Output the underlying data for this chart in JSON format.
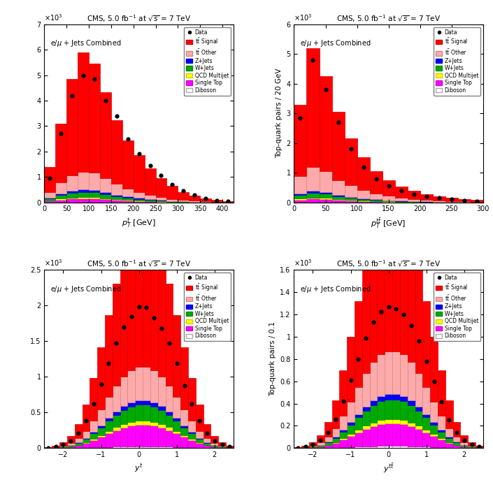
{
  "title": "CMS, 5.0 fb$^{-1}$ at $\\sqrt{s}$ = 7 TeV",
  "legend_label": "e/\\u03bc + Jets Combined",
  "stack_labels": [
    "t\\u0305t\\u0305 Signal",
    "t\\u0305t\\u0305 Other",
    "Z+Jets",
    "W+Jets",
    "QCD Multijet",
    "Single Top",
    "Diboson"
  ],
  "stack_colors": [
    "#ff0000",
    "#ffaaaa",
    "#0000ff",
    "#00aa00",
    "#ffff00",
    "#ff00ff",
    "#ffffff"
  ],
  "stack_edgecolors": [
    "#cc0000",
    "#cc8888",
    "#0000cc",
    "#008800",
    "#cccc00",
    "#cc00cc",
    "#aaaaaa"
  ],
  "plot1": {
    "title": "CMS, 5.0 fb$^{-1}$ at $\\sqrt{s}$ = 7 TeV",
    "xlabel": "$p_{T}^{t}$ [GeV]",
    "ylabel": "",
    "xlim": [
      0,
      425
    ],
    "ylim": [
      0,
      7000
    ],
    "ytick_scale": 1000,
    "ytick_labels": [
      "0",
      "1",
      "2",
      "3",
      "4",
      "5",
      "6",
      "7"
    ],
    "bin_edges": [
      0,
      25,
      50,
      75,
      100,
      125,
      150,
      175,
      200,
      225,
      250,
      275,
      300,
      325,
      350,
      375,
      400,
      425
    ],
    "stack_data": [
      [
        1000,
        2300,
        3800,
        4700,
        4300,
        3400,
        2500,
        1900,
        1450,
        1050,
        750,
        500,
        320,
        210,
        130,
        70,
        40
      ],
      [
        200,
        450,
        600,
        700,
        680,
        550,
        420,
        320,
        240,
        170,
        120,
        80,
        55,
        35,
        22,
        12,
        7
      ],
      [
        30,
        60,
        80,
        90,
        85,
        70,
        55,
        40,
        30,
        22,
        15,
        10,
        7,
        4,
        3,
        2,
        1
      ],
      [
        80,
        140,
        180,
        200,
        190,
        155,
        120,
        90,
        68,
        50,
        35,
        23,
        15,
        10,
        6,
        4,
        2
      ],
      [
        20,
        35,
        45,
        50,
        48,
        39,
        30,
        23,
        17,
        12,
        9,
        6,
        4,
        3,
        2,
        1,
        1
      ],
      [
        50,
        90,
        120,
        135,
        130,
        105,
        82,
        62,
        47,
        34,
        24,
        16,
        11,
        7,
        4,
        3,
        2
      ],
      [
        10,
        18,
        24,
        27,
        26,
        21,
        16,
        12,
        9,
        7,
        5,
        3,
        2,
        1,
        1,
        1,
        0
      ]
    ],
    "data_points": [
      950,
      2700,
      4200,
      5000,
      4850,
      4000,
      3400,
      2500,
      1900,
      1450,
      1050,
      700,
      450,
      300,
      150,
      85,
      50
    ],
    "data_x": [
      12.5,
      37.5,
      62.5,
      87.5,
      112.5,
      137.5,
      162.5,
      187.5,
      212.5,
      237.5,
      262.5,
      287.5,
      312.5,
      337.5,
      362.5,
      387.5,
      412.5
    ]
  },
  "plot2": {
    "title": "CMS, 5.0 fb$^{-1}$ at $\\sqrt{s}$ = 7 TeV",
    "xlabel": "$p_{T}^{t\\bar{t}}$ [GeV]",
    "ylabel": "Top-quark pairs / 20 GeV",
    "xlim": [
      0,
      300
    ],
    "ylim": [
      0,
      6000
    ],
    "ytick_scale": 1000,
    "ytick_labels": [
      "0",
      "1",
      "2",
      "3",
      "4",
      "5",
      "6"
    ],
    "bin_edges": [
      0,
      20,
      40,
      60,
      80,
      100,
      120,
      140,
      160,
      180,
      200,
      220,
      240,
      260,
      280,
      300
    ],
    "stack_data": [
      [
        2400,
        4000,
        3200,
        2300,
        1600,
        1100,
        750,
        520,
        370,
        270,
        200,
        150,
        110,
        80,
        55
      ],
      [
        600,
        800,
        700,
        500,
        380,
        280,
        200,
        145,
        105,
        77,
        57,
        43,
        32,
        24,
        17
      ],
      [
        50,
        70,
        62,
        44,
        33,
        24,
        17,
        12,
        9,
        7,
        5,
        4,
        3,
        2,
        1
      ],
      [
        120,
        160,
        140,
        100,
        76,
        55,
        40,
        29,
        21,
        15,
        11,
        8,
        6,
        5,
        3
      ],
      [
        30,
        40,
        35,
        25,
        19,
        14,
        10,
        7,
        5,
        4,
        3,
        2,
        2,
        1,
        1
      ],
      [
        80,
        107,
        94,
        67,
        51,
        37,
        27,
        19,
        14,
        10,
        8,
        6,
        4,
        3,
        2
      ],
      [
        16,
        21,
        19,
        13,
        10,
        7,
        5,
        4,
        3,
        2,
        1,
        1,
        1,
        1,
        0
      ]
    ],
    "data_points": [
      2850,
      4800,
      3800,
      2700,
      1800,
      1200,
      800,
      550,
      380,
      270,
      200,
      150,
      100,
      70,
      50
    ],
    "data_x": [
      10,
      30,
      50,
      70,
      90,
      110,
      130,
      150,
      170,
      190,
      210,
      230,
      250,
      270,
      290
    ]
  },
  "plot3": {
    "title": "CMS, 5.0 fb$^{-1}$ at $\\sqrt{s}$ = 7 TeV",
    "xlabel": "$y^{t}$",
    "ylabel": "",
    "xlim": [
      -2.5,
      2.5
    ],
    "ylim": [
      0,
      2500
    ],
    "ytick_scale": 1000,
    "ytick_labels": [
      "0",
      "0.5",
      "1",
      "1.5",
      "2",
      "2.5"
    ],
    "bin_edges": [
      -2.5,
      -2.3,
      -2.1,
      -1.9,
      -1.7,
      -1.5,
      -1.3,
      -1.1,
      -0.9,
      -0.7,
      -0.5,
      -0.3,
      -0.1,
      0.1,
      0.3,
      0.5,
      0.7,
      0.9,
      1.1,
      1.3,
      1.5,
      1.7,
      1.9,
      2.1,
      2.3,
      2.5
    ],
    "stack_data": [
      [
        5,
        18,
        45,
        100,
        200,
        370,
        600,
        870,
        1150,
        1430,
        1650,
        1800,
        1870,
        1870,
        1800,
        1650,
        1430,
        1150,
        870,
        600,
        370,
        200,
        100,
        45,
        18
      ],
      [
        2,
        6,
        14,
        30,
        57,
        100,
        160,
        225,
        295,
        362,
        415,
        453,
        470,
        470,
        453,
        415,
        362,
        295,
        225,
        160,
        100,
        57,
        30,
        14,
        6
      ],
      [
        0,
        1,
        2,
        4,
        8,
        13,
        21,
        29,
        38,
        46,
        52,
        57,
        59,
        59,
        57,
        52,
        46,
        38,
        29,
        21,
        13,
        8,
        4,
        2,
        1
      ],
      [
        1,
        3,
        7,
        14,
        27,
        48,
        77,
        109,
        143,
        175,
        200,
        218,
        226,
        226,
        218,
        200,
        175,
        143,
        109,
        77,
        48,
        27,
        14,
        7,
        3
      ],
      [
        0,
        1,
        2,
        4,
        7,
        12,
        19,
        27,
        35,
        43,
        49,
        54,
        56,
        56,
        54,
        49,
        43,
        35,
        27,
        19,
        12,
        7,
        4,
        2,
        1
      ],
      [
        1,
        4,
        9,
        19,
        36,
        63,
        102,
        144,
        189,
        232,
        266,
        290,
        301,
        301,
        290,
        266,
        232,
        189,
        144,
        102,
        63,
        36,
        19,
        9,
        4
      ],
      [
        0,
        0,
        1,
        2,
        3,
        5,
        8,
        11,
        15,
        18,
        21,
        23,
        24,
        24,
        23,
        21,
        18,
        15,
        11,
        8,
        5,
        3,
        2,
        1,
        0
      ]
    ],
    "data_x": [
      -2.4,
      -2.2,
      -2.0,
      -1.8,
      -1.6,
      -1.4,
      -1.2,
      -1.0,
      -0.8,
      -0.6,
      -0.4,
      -0.2,
      0.0,
      0.2,
      0.4,
      0.6,
      0.8,
      1.0,
      1.2,
      1.4,
      1.6,
      1.8,
      2.0,
      2.2,
      2.4
    ],
    "data_points": [
      5,
      20,
      48,
      105,
      210,
      385,
      625,
      900,
      1190,
      1470,
      1700,
      1850,
      1980,
      1970,
      1830,
      1680,
      1470,
      1190,
      880,
      620,
      385,
      205,
      105,
      48,
      20
    ]
  },
  "plot4": {
    "title": "CMS, 5.0 fb$^{-1}$ at $\\sqrt{s}$ = 7 TeV",
    "xlabel": "$y^{t\\bar{t}}$",
    "ylabel": "Top-quark pairs / 0.1",
    "xlim": [
      -2.5,
      2.5
    ],
    "ylim": [
      0,
      1600
    ],
    "ytick_scale": 1000,
    "ytick_labels": [
      "0",
      "0.2",
      "0.4",
      "0.6",
      "0.8",
      "1",
      "1.2",
      "1.4",
      "1.6"
    ],
    "bin_edges": [
      -2.5,
      -2.3,
      -2.1,
      -1.9,
      -1.7,
      -1.5,
      -1.3,
      -1.1,
      -0.9,
      -0.7,
      -0.5,
      -0.3,
      -0.1,
      0.1,
      0.3,
      0.5,
      0.7,
      0.9,
      1.1,
      1.3,
      1.5,
      1.7,
      1.9,
      2.1,
      2.3,
      2.5
    ],
    "stack_data": [
      [
        3,
        12,
        30,
        67,
        135,
        248,
        405,
        585,
        770,
        950,
        1090,
        1185,
        1225,
        1225,
        1185,
        1090,
        950,
        770,
        585,
        405,
        248,
        135,
        67,
        30,
        12
      ],
      [
        1,
        4,
        10,
        22,
        44,
        80,
        130,
        186,
        244,
        300,
        343,
        373,
        386,
        386,
        373,
        343,
        300,
        244,
        186,
        130,
        80,
        44,
        22,
        10,
        4
      ],
      [
        0,
        1,
        1,
        3,
        6,
        10,
        17,
        24,
        31,
        38,
        43,
        47,
        48,
        48,
        47,
        43,
        38,
        31,
        24,
        17,
        10,
        6,
        3,
        1,
        1
      ],
      [
        1,
        2,
        5,
        10,
        20,
        36,
        59,
        84,
        111,
        136,
        156,
        170,
        176,
        176,
        170,
        156,
        136,
        111,
        84,
        59,
        36,
        20,
        10,
        5,
        2
      ],
      [
        0,
        0,
        1,
        2,
        4,
        8,
        13,
        18,
        24,
        29,
        33,
        36,
        38,
        38,
        36,
        33,
        29,
        24,
        18,
        13,
        8,
        4,
        2,
        1,
        0
      ],
      [
        0,
        2,
        5,
        11,
        23,
        42,
        68,
        97,
        128,
        157,
        180,
        196,
        203,
        203,
        196,
        180,
        157,
        128,
        97,
        68,
        42,
        23,
        11,
        5,
        2
      ],
      [
        0,
        0,
        1,
        1,
        2,
        4,
        6,
        9,
        12,
        14,
        17,
        18,
        19,
        19,
        18,
        17,
        14,
        12,
        9,
        6,
        4,
        2,
        1,
        1,
        0
      ]
    ],
    "data_x": [
      -2.4,
      -2.2,
      -2.0,
      -1.8,
      -1.6,
      -1.4,
      -1.2,
      -1.0,
      -0.8,
      -0.6,
      -0.4,
      -0.2,
      0.0,
      0.2,
      0.4,
      0.6,
      0.8,
      1.0,
      1.2,
      1.4,
      1.6,
      1.8,
      2.0,
      2.2,
      2.4
    ],
    "data_points": [
      3,
      13,
      33,
      70,
      142,
      260,
      425,
      610,
      800,
      985,
      1130,
      1225,
      1270,
      1250,
      1200,
      1100,
      960,
      780,
      595,
      415,
      255,
      140,
      70,
      33,
      13
    ]
  }
}
